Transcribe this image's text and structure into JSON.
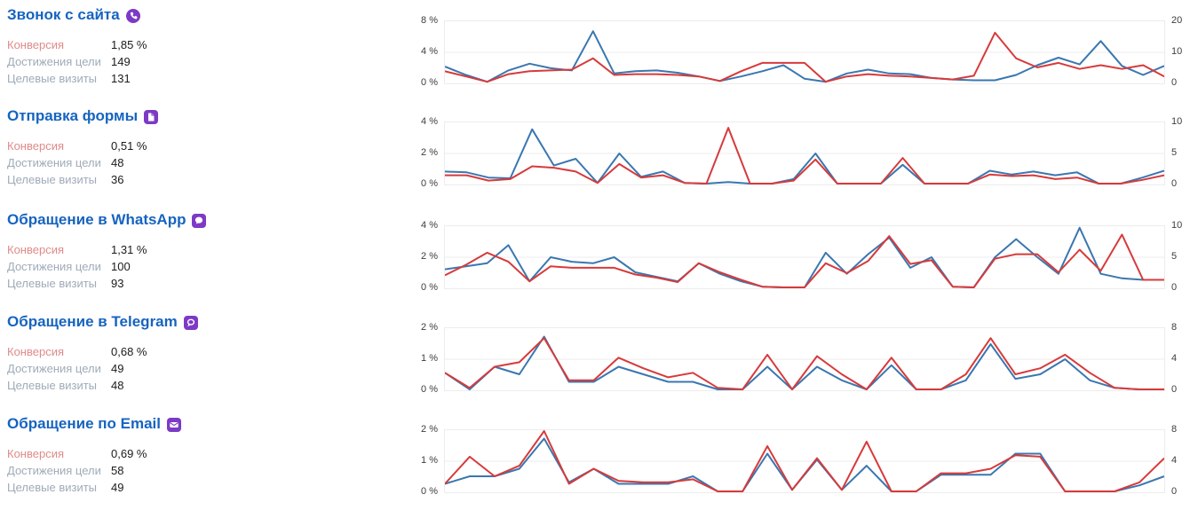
{
  "sections": [
    {
      "title": "Звонок с сайта",
      "icon": "phone-icon",
      "stats": {
        "conversion_label": "Конверсия",
        "conversion_value": "1,85 %",
        "reaches_label": "Достижения цели",
        "reaches_value": "149",
        "visits_label": "Целевые визиты",
        "visits_value": "131"
      }
    },
    {
      "title": "Отправка формы",
      "icon": "form-icon",
      "stats": {
        "conversion_label": "Конверсия",
        "conversion_value": "0,51 %",
        "reaches_label": "Достижения цели",
        "reaches_value": "48",
        "visits_label": "Целевые визиты",
        "visits_value": "36"
      }
    },
    {
      "title": "Обращение в WhatsApp",
      "icon": "whatsapp-icon",
      "stats": {
        "conversion_label": "Конверсия",
        "conversion_value": "1,31 %",
        "reaches_label": "Достижения цели",
        "reaches_value": "100",
        "visits_label": "Целевые визиты",
        "visits_value": "93"
      }
    },
    {
      "title": "Обращение в Telegram",
      "icon": "telegram-icon",
      "stats": {
        "conversion_label": "Конверсия",
        "conversion_value": "0,68 %",
        "reaches_label": "Достижения цели",
        "reaches_value": "49",
        "visits_label": "Целевые визиты",
        "visits_value": "48"
      }
    },
    {
      "title": "Обращение по Email",
      "icon": "email-icon",
      "stats": {
        "conversion_label": "Конверсия",
        "conversion_value": "0,69 %",
        "reaches_label": "Достижения цели",
        "reaches_value": "58",
        "visits_label": "Целевые визиты",
        "visits_value": "49"
      }
    }
  ],
  "chart_data": [
    {
      "type": "line",
      "title": "Звонок с сайта",
      "y_left_ticks": [
        "8 %",
        "4 %",
        "0 %"
      ],
      "y_right_ticks": [
        "20",
        "10",
        "0"
      ],
      "ylim_percent": [
        0,
        8
      ],
      "ylim_count": [
        0,
        20
      ],
      "grid": true,
      "legend": "none",
      "series": [
        {
          "name": "blue-line",
          "color": "#3a77b0",
          "values": [
            2.1,
            1.0,
            0.1,
            1.6,
            2.5,
            1.9,
            1.6,
            6.8,
            1.2,
            1.5,
            1.6,
            1.3,
            0.8,
            0.2,
            0.8,
            1.5,
            2.3,
            0.5,
            0.1,
            1.2,
            1.7,
            1.2,
            1.1,
            0.6,
            0.4,
            0.3,
            0.3,
            1.0,
            2.3,
            3.3,
            2.4,
            5.5,
            2.2,
            1.0,
            2.2
          ]
        },
        {
          "name": "red-line",
          "color": "#d73a3b",
          "values": [
            1.5,
            0.8,
            0.1,
            1.1,
            1.5,
            1.6,
            1.7,
            3.2,
            1.0,
            1.1,
            1.1,
            1.0,
            0.8,
            0.2,
            1.5,
            2.6,
            2.6,
            2.6,
            0.1,
            0.8,
            1.1,
            0.9,
            0.8,
            0.6,
            0.4,
            0.9,
            6.6,
            3.2,
            2.0,
            2.6,
            1.8,
            2.3,
            1.8,
            2.3,
            0.8
          ]
        }
      ]
    },
    {
      "type": "line",
      "title": "Отправка формы",
      "y_left_ticks": [
        "4 %",
        "2 %",
        "0 %"
      ],
      "y_right_ticks": [
        "10",
        "5",
        "0"
      ],
      "ylim_percent": [
        0,
        4
      ],
      "ylim_count": [
        0,
        10
      ],
      "grid": true,
      "legend": "none",
      "series": [
        {
          "name": "blue-line",
          "color": "#3a77b0",
          "values": [
            0.8,
            0.75,
            0.4,
            0.35,
            3.6,
            1.2,
            1.65,
            0.05,
            2.0,
            0.45,
            0.8,
            0.05,
            0.0,
            0.1,
            0.0,
            0.0,
            0.3,
            2.0,
            0.0,
            0.0,
            0.0,
            1.25,
            0.0,
            0.0,
            0.0,
            0.85,
            0.6,
            0.8,
            0.55,
            0.75,
            0.0,
            0.0,
            0.4,
            0.85
          ]
        },
        {
          "name": "red-line",
          "color": "#d73a3b",
          "values": [
            0.55,
            0.55,
            0.2,
            0.3,
            1.15,
            1.05,
            0.8,
            0.05,
            1.3,
            0.4,
            0.55,
            0.05,
            0.0,
            3.7,
            0.0,
            0.0,
            0.2,
            1.6,
            0.0,
            0.0,
            0.0,
            1.7,
            0.0,
            0.0,
            0.0,
            0.6,
            0.5,
            0.55,
            0.3,
            0.4,
            0.0,
            0.0,
            0.25,
            0.55
          ]
        }
      ]
    },
    {
      "type": "line",
      "title": "Обращение в WhatsApp",
      "y_left_ticks": [
        "4 %",
        "2 %",
        "0 %"
      ],
      "y_right_ticks": [
        "10",
        "5",
        "0"
      ],
      "ylim_percent": [
        0,
        4
      ],
      "ylim_count": [
        0,
        10
      ],
      "grid": true,
      "legend": "none",
      "series": [
        {
          "name": "blue-line",
          "color": "#3a77b0",
          "values": [
            1.2,
            1.4,
            1.6,
            2.8,
            0.4,
            2.0,
            1.7,
            1.6,
            2.0,
            1.0,
            0.7,
            0.4,
            1.6,
            0.9,
            0.4,
            0.05,
            0.0,
            0.0,
            2.3,
            0.9,
            2.2,
            3.3,
            1.3,
            2.0,
            0.05,
            0.0,
            2.0,
            3.2,
            2.0,
            0.9,
            3.95,
            0.9,
            0.6,
            0.5,
            0.5
          ]
        },
        {
          "name": "red-line",
          "color": "#d73a3b",
          "values": [
            0.8,
            1.5,
            2.3,
            1.7,
            0.4,
            1.4,
            1.3,
            1.3,
            1.3,
            0.85,
            0.65,
            0.35,
            1.6,
            1.0,
            0.5,
            0.05,
            0.0,
            0.0,
            1.6,
            0.95,
            1.75,
            3.4,
            1.55,
            1.8,
            0.05,
            0.0,
            1.9,
            2.2,
            2.2,
            1.0,
            2.5,
            1.1,
            3.5,
            0.5,
            0.5
          ]
        }
      ]
    },
    {
      "type": "line",
      "title": "Обращение в Telegram",
      "y_left_ticks": [
        "2 %",
        "1 %",
        "0 %"
      ],
      "y_right_ticks": [
        "8",
        "4",
        "0"
      ],
      "ylim_percent": [
        0,
        2
      ],
      "ylim_count": [
        0,
        8
      ],
      "grid": true,
      "legend": "none",
      "series": [
        {
          "name": "blue-line",
          "color": "#3a77b0",
          "values": [
            0.55,
            0.0,
            0.75,
            0.5,
            1.75,
            0.25,
            0.25,
            0.75,
            0.5,
            0.25,
            0.25,
            0.0,
            0.0,
            0.75,
            0.0,
            0.75,
            0.3,
            0.0,
            0.8,
            0.0,
            0.0,
            0.3,
            1.5,
            0.35,
            0.5,
            1.0,
            0.3,
            0.05,
            0.0,
            0.0
          ]
        },
        {
          "name": "red-line",
          "color": "#d73a3b",
          "values": [
            0.55,
            0.05,
            0.75,
            0.9,
            1.7,
            0.3,
            0.3,
            1.05,
            0.7,
            0.4,
            0.55,
            0.05,
            0.0,
            1.15,
            0.0,
            1.1,
            0.5,
            0.0,
            1.05,
            0.0,
            0.0,
            0.5,
            1.7,
            0.5,
            0.7,
            1.15,
            0.55,
            0.05,
            0.0,
            0.0
          ]
        }
      ]
    },
    {
      "type": "line",
      "title": "Обращение по Email",
      "y_left_ticks": [
        "2 %",
        "1 %",
        "0 %"
      ],
      "y_right_ticks": [
        "8",
        "4",
        "0"
      ],
      "ylim_percent": [
        0,
        2
      ],
      "ylim_count": [
        0,
        8
      ],
      "grid": true,
      "legend": "none",
      "series": [
        {
          "name": "blue-line",
          "color": "#3a77b0",
          "values": [
            0.25,
            0.5,
            0.5,
            0.75,
            1.75,
            0.3,
            0.75,
            0.25,
            0.25,
            0.25,
            0.5,
            0.0,
            0.0,
            1.25,
            0.05,
            1.05,
            0.05,
            0.85,
            0.0,
            0.0,
            0.55,
            0.55,
            0.55,
            1.25,
            1.25,
            0.0,
            0.0,
            0.0,
            0.2,
            0.5
          ]
        },
        {
          "name": "red-line",
          "color": "#d73a3b",
          "values": [
            0.25,
            1.15,
            0.5,
            0.85,
            2.0,
            0.25,
            0.75,
            0.35,
            0.3,
            0.3,
            0.4,
            0.0,
            0.0,
            1.5,
            0.05,
            1.1,
            0.05,
            1.65,
            0.0,
            0.0,
            0.6,
            0.6,
            0.75,
            1.2,
            1.15,
            0.0,
            0.0,
            0.0,
            0.3,
            1.1
          ]
        }
      ]
    }
  ],
  "colors": {
    "title_blue": "#1664c0",
    "icon_purple": "#7c3ac6",
    "conversion_label": "#e08a8a",
    "muted_label": "#9fabb8",
    "line_blue": "#3a77b0",
    "line_red": "#d73a3b",
    "gridline": "#ececec"
  }
}
